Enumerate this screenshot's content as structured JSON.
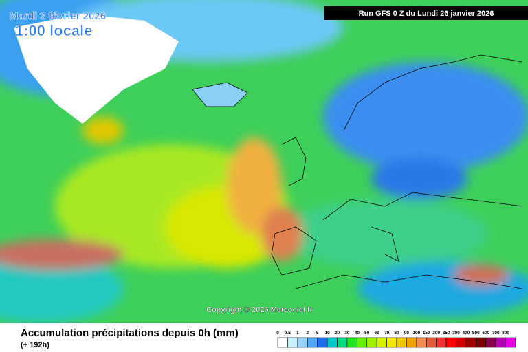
{
  "header": {
    "date": "Mardi 3 février 2026",
    "time": "1:00 locale",
    "run": "Run GFS 0 Z du Lundi 26 janvier 2026"
  },
  "copyright": "Copyright © 2026 Meteociel.fr",
  "footer": {
    "title": "Accumulation précipitations depuis 0h (mm)",
    "subtitle": "(+ 192h)"
  },
  "legend": {
    "items": [
      {
        "label": "0",
        "color": "#ffffff"
      },
      {
        "label": "0.5",
        "color": "#c8f0ff"
      },
      {
        "label": "1",
        "color": "#96d2fa"
      },
      {
        "label": "2",
        "color": "#50a5f5"
      },
      {
        "label": "5",
        "color": "#1e6eeb"
      },
      {
        "label": "10",
        "color": "#00c8c8"
      },
      {
        "label": "20",
        "color": "#00dc82"
      },
      {
        "label": "30",
        "color": "#1ee61e"
      },
      {
        "label": "40",
        "color": "#64f000"
      },
      {
        "label": "50",
        "color": "#a0f000"
      },
      {
        "label": "60",
        "color": "#d2f000"
      },
      {
        "label": "70",
        "color": "#f0e600"
      },
      {
        "label": "80",
        "color": "#f0c800"
      },
      {
        "label": "90",
        "color": "#f0a000"
      },
      {
        "label": "100",
        "color": "#f08c50"
      },
      {
        "label": "150",
        "color": "#e65a3c"
      },
      {
        "label": "200",
        "color": "#f03232"
      },
      {
        "label": "250",
        "color": "#ff0000"
      },
      {
        "label": "300",
        "color": "#d20000"
      },
      {
        "label": "400",
        "color": "#a00000"
      },
      {
        "label": "500",
        "color": "#780000"
      },
      {
        "label": "600",
        "color": "#8c0050"
      },
      {
        "label": "700",
        "color": "#b400b4"
      },
      {
        "label": "800",
        "color": "#e600e6"
      }
    ]
  }
}
